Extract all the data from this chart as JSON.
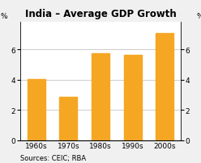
{
  "title": "India – Average GDP Growth",
  "categories": [
    "1960s",
    "1970s",
    "1980s",
    "1990s",
    "2000s"
  ],
  "values": [
    4.02,
    2.88,
    5.75,
    5.65,
    7.1
  ],
  "bar_color": "#F5A623",
  "ylim": [
    0,
    7.8
  ],
  "yticks": [
    0,
    2,
    4,
    6
  ],
  "ylabel_left": "%",
  "ylabel_right": "%",
  "source_text": "Sources: CEIC; RBA",
  "bg_color": "#f0f0f0",
  "plot_bg_color": "#ffffff",
  "grid_color": "#cccccc",
  "title_fontsize": 8.5,
  "tick_fontsize": 6.5,
  "source_fontsize": 6.0,
  "bar_width": 0.55
}
